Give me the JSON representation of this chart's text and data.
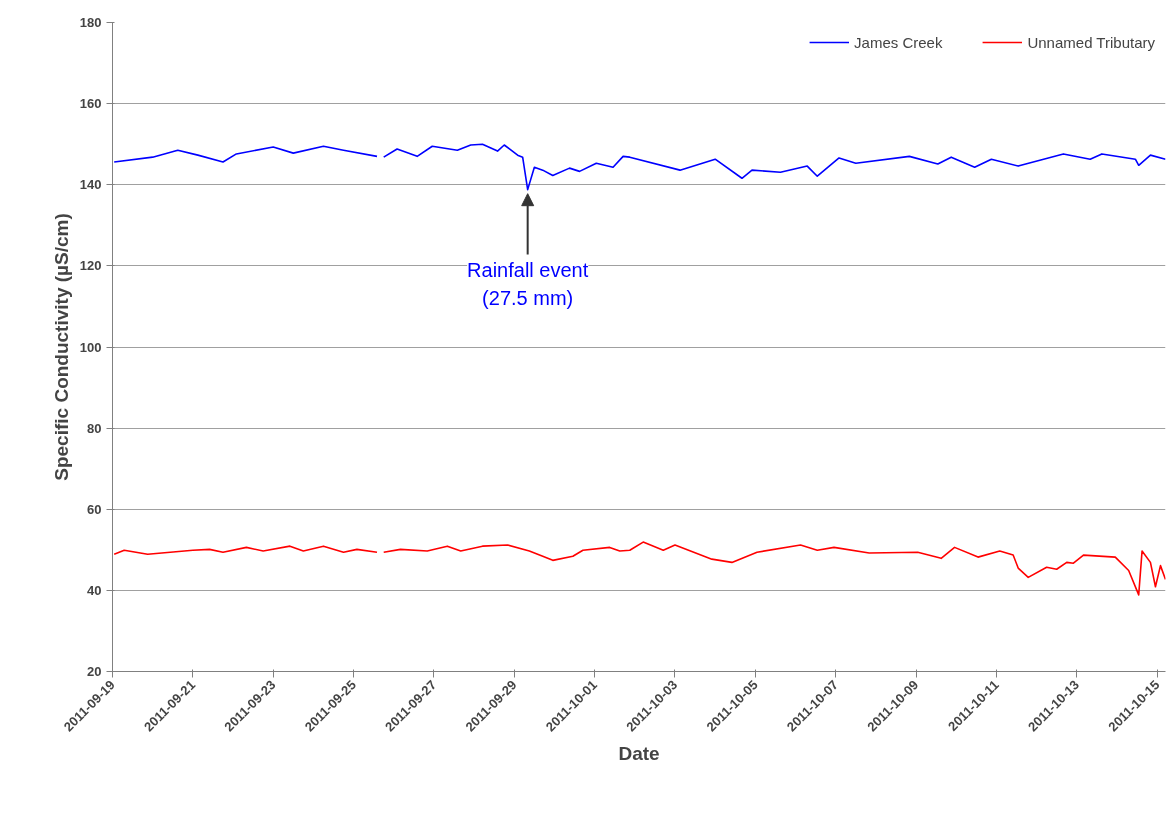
{
  "chart_data": {
    "type": "line",
    "xlabel": "Date",
    "ylabel": "Specific Conductivity (µS/cm)",
    "xlim": [
      "2011-09-19T00:00",
      "2011-10-15T05:00"
    ],
    "xticks": [
      "2011-09-19",
      "2011-09-21",
      "2011-09-23",
      "2011-09-25",
      "2011-09-27",
      "2011-09-29",
      "2011-10-01",
      "2011-10-03",
      "2011-10-05",
      "2011-10-07",
      "2011-10-09",
      "2011-10-11",
      "2011-10-13",
      "2011-10-15"
    ],
    "ylim": [
      20,
      180
    ],
    "yticks": [
      20,
      40,
      60,
      80,
      100,
      120,
      140,
      160,
      180
    ],
    "grid": "y",
    "legend": "top right",
    "line_style": "solid",
    "marker": "none",
    "annotations": [
      {
        "text": "Rainfall event\n(27.5 mm)",
        "x": "2011-09-29T08:00",
        "y": 138.8
      }
    ],
    "series": [
      {
        "name": "James Creek",
        "color": "#0000ff",
        "x": [
          "2011-09-19T01:00",
          "2011-09-20T00:00",
          "2011-09-20T15:00",
          "2011-09-21T03:00",
          "2011-09-21T18:00",
          "2011-09-22T02:00",
          "2011-09-23T00:00",
          "2011-09-23T12:00",
          "2011-09-24T06:00",
          "2011-09-24T18:00",
          "2011-09-25T14:00",
          "2011-09-25T16:00",
          "2011-09-25T18:00",
          "2011-09-26T02:00",
          "2011-09-26T14:00",
          "2011-09-26T23:00",
          "2011-09-27T14:00",
          "2011-09-27T22:00",
          "2011-09-28T05:00",
          "2011-09-28T14:00",
          "2011-09-28T18:00",
          "2011-09-29T02:00",
          "2011-09-29T05:00",
          "2011-09-29T08:00",
          "2011-09-29T12:00",
          "2011-09-29T17:00",
          "2011-09-29T23:00",
          "2011-09-30T09:00",
          "2011-09-30T15:00",
          "2011-10-01T01:00",
          "2011-10-01T11:00",
          "2011-10-01T17:00",
          "2011-10-01T21:00",
          "2011-10-03T03:00",
          "2011-10-04T00:00",
          "2011-10-04T16:00",
          "2011-10-04T22:00",
          "2011-10-05T15:00",
          "2011-10-06T07:00",
          "2011-10-06T13:00",
          "2011-10-07T02:00",
          "2011-10-07T12:00",
          "2011-10-08T20:00",
          "2011-10-09T13:00",
          "2011-10-09T21:00",
          "2011-10-10T11:00",
          "2011-10-10T21:00",
          "2011-10-11T13:00",
          "2011-10-12T16:00",
          "2011-10-13T08:00",
          "2011-10-13T15:00",
          "2011-10-14T11:00",
          "2011-10-14T13:00",
          "2011-10-14T20:00",
          "2011-10-15T05:00"
        ],
        "values": [
          145.6,
          146.8,
          148.5,
          147.3,
          145.6,
          147.6,
          149.3,
          147.8,
          149.5,
          148.5,
          147.0,
          null,
          146.8,
          148.8,
          147.0,
          149.5,
          148.5,
          149.8,
          150.0,
          148.3,
          149.8,
          147.3,
          146.8,
          138.8,
          144.3,
          143.6,
          142.3,
          144.1,
          143.3,
          145.3,
          144.3,
          147.0,
          146.8,
          143.6,
          146.3,
          141.6,
          143.6,
          143.1,
          144.6,
          142.1,
          146.6,
          145.3,
          147.0,
          145.1,
          146.8,
          144.3,
          146.3,
          144.6,
          147.6,
          146.3,
          147.6,
          146.3,
          144.8,
          147.3,
          146.3
        ]
      },
      {
        "name": "Unnamed Tributary",
        "color": "#ff0000",
        "x": [
          "2011-09-19T01:00",
          "2011-09-19T07:00",
          "2011-09-19T21:00",
          "2011-09-21T00:00",
          "2011-09-21T10:00",
          "2011-09-21T18:00",
          "2011-09-22T08:00",
          "2011-09-22T18:00",
          "2011-09-23T10:00",
          "2011-09-23T18:00",
          "2011-09-24T06:00",
          "2011-09-24T18:00",
          "2011-09-25T02:00",
          "2011-09-25T14:00",
          "2011-09-25T16:00",
          "2011-09-25T18:00",
          "2011-09-26T04:00",
          "2011-09-26T20:00",
          "2011-09-27T08:00",
          "2011-09-27T16:00",
          "2011-09-28T05:00",
          "2011-09-28T20:00",
          "2011-09-29T09:00",
          "2011-09-29T17:00",
          "2011-09-29T23:00",
          "2011-09-30T11:00",
          "2011-09-30T17:00",
          "2011-10-01T09:00",
          "2011-10-01T15:00",
          "2011-10-01T21:00",
          "2011-10-02T05:00",
          "2011-10-02T17:00",
          "2011-10-03T00:00",
          "2011-10-03T22:00",
          "2011-10-04T10:00",
          "2011-10-05T01:00",
          "2011-10-06T03:00",
          "2011-10-06T13:00",
          "2011-10-06T23:00",
          "2011-10-07T20:00",
          "2011-10-09T01:00",
          "2011-10-09T15:00",
          "2011-10-09T23:00",
          "2011-10-10T13:00",
          "2011-10-11T02:00",
          "2011-10-11T10:00",
          "2011-10-11T13:00",
          "2011-10-11T19:00",
          "2011-10-12T06:00",
          "2011-10-12T12:00",
          "2011-10-12T18:00",
          "2011-10-12T22:00",
          "2011-10-13T04:00",
          "2011-10-13T23:00",
          "2011-10-14T07:00",
          "2011-10-14T13:00",
          "2011-10-14T15:00",
          "2011-10-14T20:00",
          "2011-10-14T23:00",
          "2011-10-15T02:00",
          "2011-10-15T05:00"
        ],
        "values": [
          48.9,
          49.9,
          48.9,
          49.9,
          50.1,
          49.4,
          50.6,
          49.7,
          50.9,
          49.7,
          50.9,
          49.4,
          50.1,
          49.4,
          null,
          49.4,
          50.1,
          49.7,
          50.9,
          49.7,
          50.9,
          51.2,
          49.7,
          48.4,
          47.4,
          48.4,
          49.9,
          50.6,
          49.7,
          49.9,
          51.9,
          49.9,
          51.2,
          47.7,
          46.9,
          49.4,
          51.2,
          49.9,
          50.6,
          49.2,
          49.4,
          47.9,
          50.6,
          48.2,
          49.7,
          48.7,
          45.5,
          43.2,
          45.7,
          45.2,
          46.9,
          46.7,
          48.7,
          48.2,
          44.9,
          38.9,
          49.7,
          46.9,
          40.9,
          46.1,
          42.7
        ]
      }
    ]
  }
}
